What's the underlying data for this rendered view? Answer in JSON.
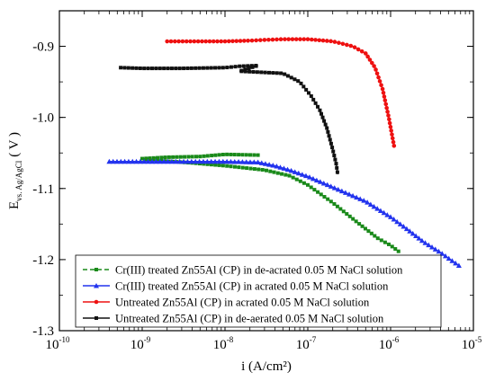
{
  "chart_data": {
    "type": "line",
    "xlabel": "i (A/cm²)",
    "ylabel_main": "E",
    "ylabel_sub": "vs. Ag/AgCl",
    "ylabel_unit": "( V )",
    "x_scale": "log",
    "xlim": [
      1e-10,
      1e-05
    ],
    "ylim": [
      -1.3,
      -0.85
    ],
    "x_ticks": [
      {
        "value": 1e-10,
        "base": "10",
        "exp": "-10"
      },
      {
        "value": 1e-09,
        "base": "10",
        "exp": "-9"
      },
      {
        "value": 1e-08,
        "base": "10",
        "exp": "-8"
      },
      {
        "value": 1e-07,
        "base": "10",
        "exp": "-7"
      },
      {
        "value": 1e-06,
        "base": "10",
        "exp": "-6"
      },
      {
        "value": 1e-05,
        "base": "10",
        "exp": "-5"
      }
    ],
    "y_ticks": [
      {
        "value": -0.9,
        "label": "-0.9"
      },
      {
        "value": -1.0,
        "label": "-1.0"
      },
      {
        "value": -1.1,
        "label": "-1.1"
      },
      {
        "value": -1.2,
        "label": "-1.2"
      },
      {
        "value": -1.3,
        "label": "-1.3"
      }
    ],
    "grid": false,
    "legend_position": "bottom-left",
    "series": [
      {
        "name": "Cr(III) treated Zn55Al (CP) in de-acrated 0.05 M NaCl solution",
        "color": "#1a8a1a",
        "marker": "square",
        "dash": "dash",
        "x": [
          2.5e-08,
          1e-08,
          5e-09,
          2e-09,
          1e-09,
          1.7e-09,
          4e-09,
          1e-08,
          3e-08,
          6e-08,
          1e-07,
          2e-07,
          4e-07,
          7e-07,
          1e-06,
          1.3e-06
        ],
        "y": [
          -1.053,
          -1.052,
          -1.055,
          -1.056,
          -1.058,
          -1.061,
          -1.064,
          -1.068,
          -1.074,
          -1.082,
          -1.095,
          -1.12,
          -1.148,
          -1.17,
          -1.18,
          -1.19
        ]
      },
      {
        "name": "Cr(III) treated Zn55Al (CP) in acrated 0.05 M NaCl solution",
        "color": "#2233ee",
        "marker": "triangle",
        "dash": "solid",
        "x": [
          4e-10,
          1e-09,
          3e-09,
          1e-08,
          2.5e-08,
          4e-08,
          6e-08,
          1e-07,
          2e-07,
          5e-07,
          1e-06,
          1.5e-06,
          2.5e-06,
          4e-06,
          7e-06
        ],
        "y": [
          -1.062,
          -1.062,
          -1.062,
          -1.062,
          -1.063,
          -1.068,
          -1.074,
          -1.083,
          -1.098,
          -1.118,
          -1.14,
          -1.155,
          -1.175,
          -1.19,
          -1.21
        ]
      },
      {
        "name": "Untreated Zn55Al (CP) in acrated 0.05 M NaCl solution",
        "color": "#ee1111",
        "marker": "circle",
        "dash": "solid",
        "x": [
          2e-09,
          5e-09,
          1e-08,
          2e-08,
          3e-08,
          5e-08,
          1e-07,
          2e-07,
          3.5e-07,
          5e-07,
          6.5e-07,
          8e-07,
          9.5e-07,
          1.1e-06
        ],
        "y": [
          -0.893,
          -0.893,
          -0.893,
          -0.892,
          -0.891,
          -0.89,
          -0.89,
          -0.893,
          -0.9,
          -0.91,
          -0.93,
          -0.96,
          -1.0,
          -1.04
        ]
      },
      {
        "name": "Untreated Zn55Al (CP) in de-aerated 0.05 M NaCl solution",
        "color": "#111111",
        "marker": "square",
        "dash": "solid",
        "x": [
          5.5e-10,
          1e-09,
          3e-09,
          1e-08,
          1.5e-08,
          2.5e-08,
          1.5e-08,
          5e-08,
          8e-08,
          1.1e-07,
          1.4e-07,
          1.7e-07,
          2e-07,
          2.2e-07,
          2.3e-07
        ],
        "y": [
          -0.93,
          -0.931,
          -0.931,
          -0.93,
          -0.928,
          -0.927,
          -0.935,
          -0.938,
          -0.95,
          -0.97,
          -0.99,
          -1.015,
          -1.045,
          -1.065,
          -1.08
        ]
      }
    ]
  }
}
